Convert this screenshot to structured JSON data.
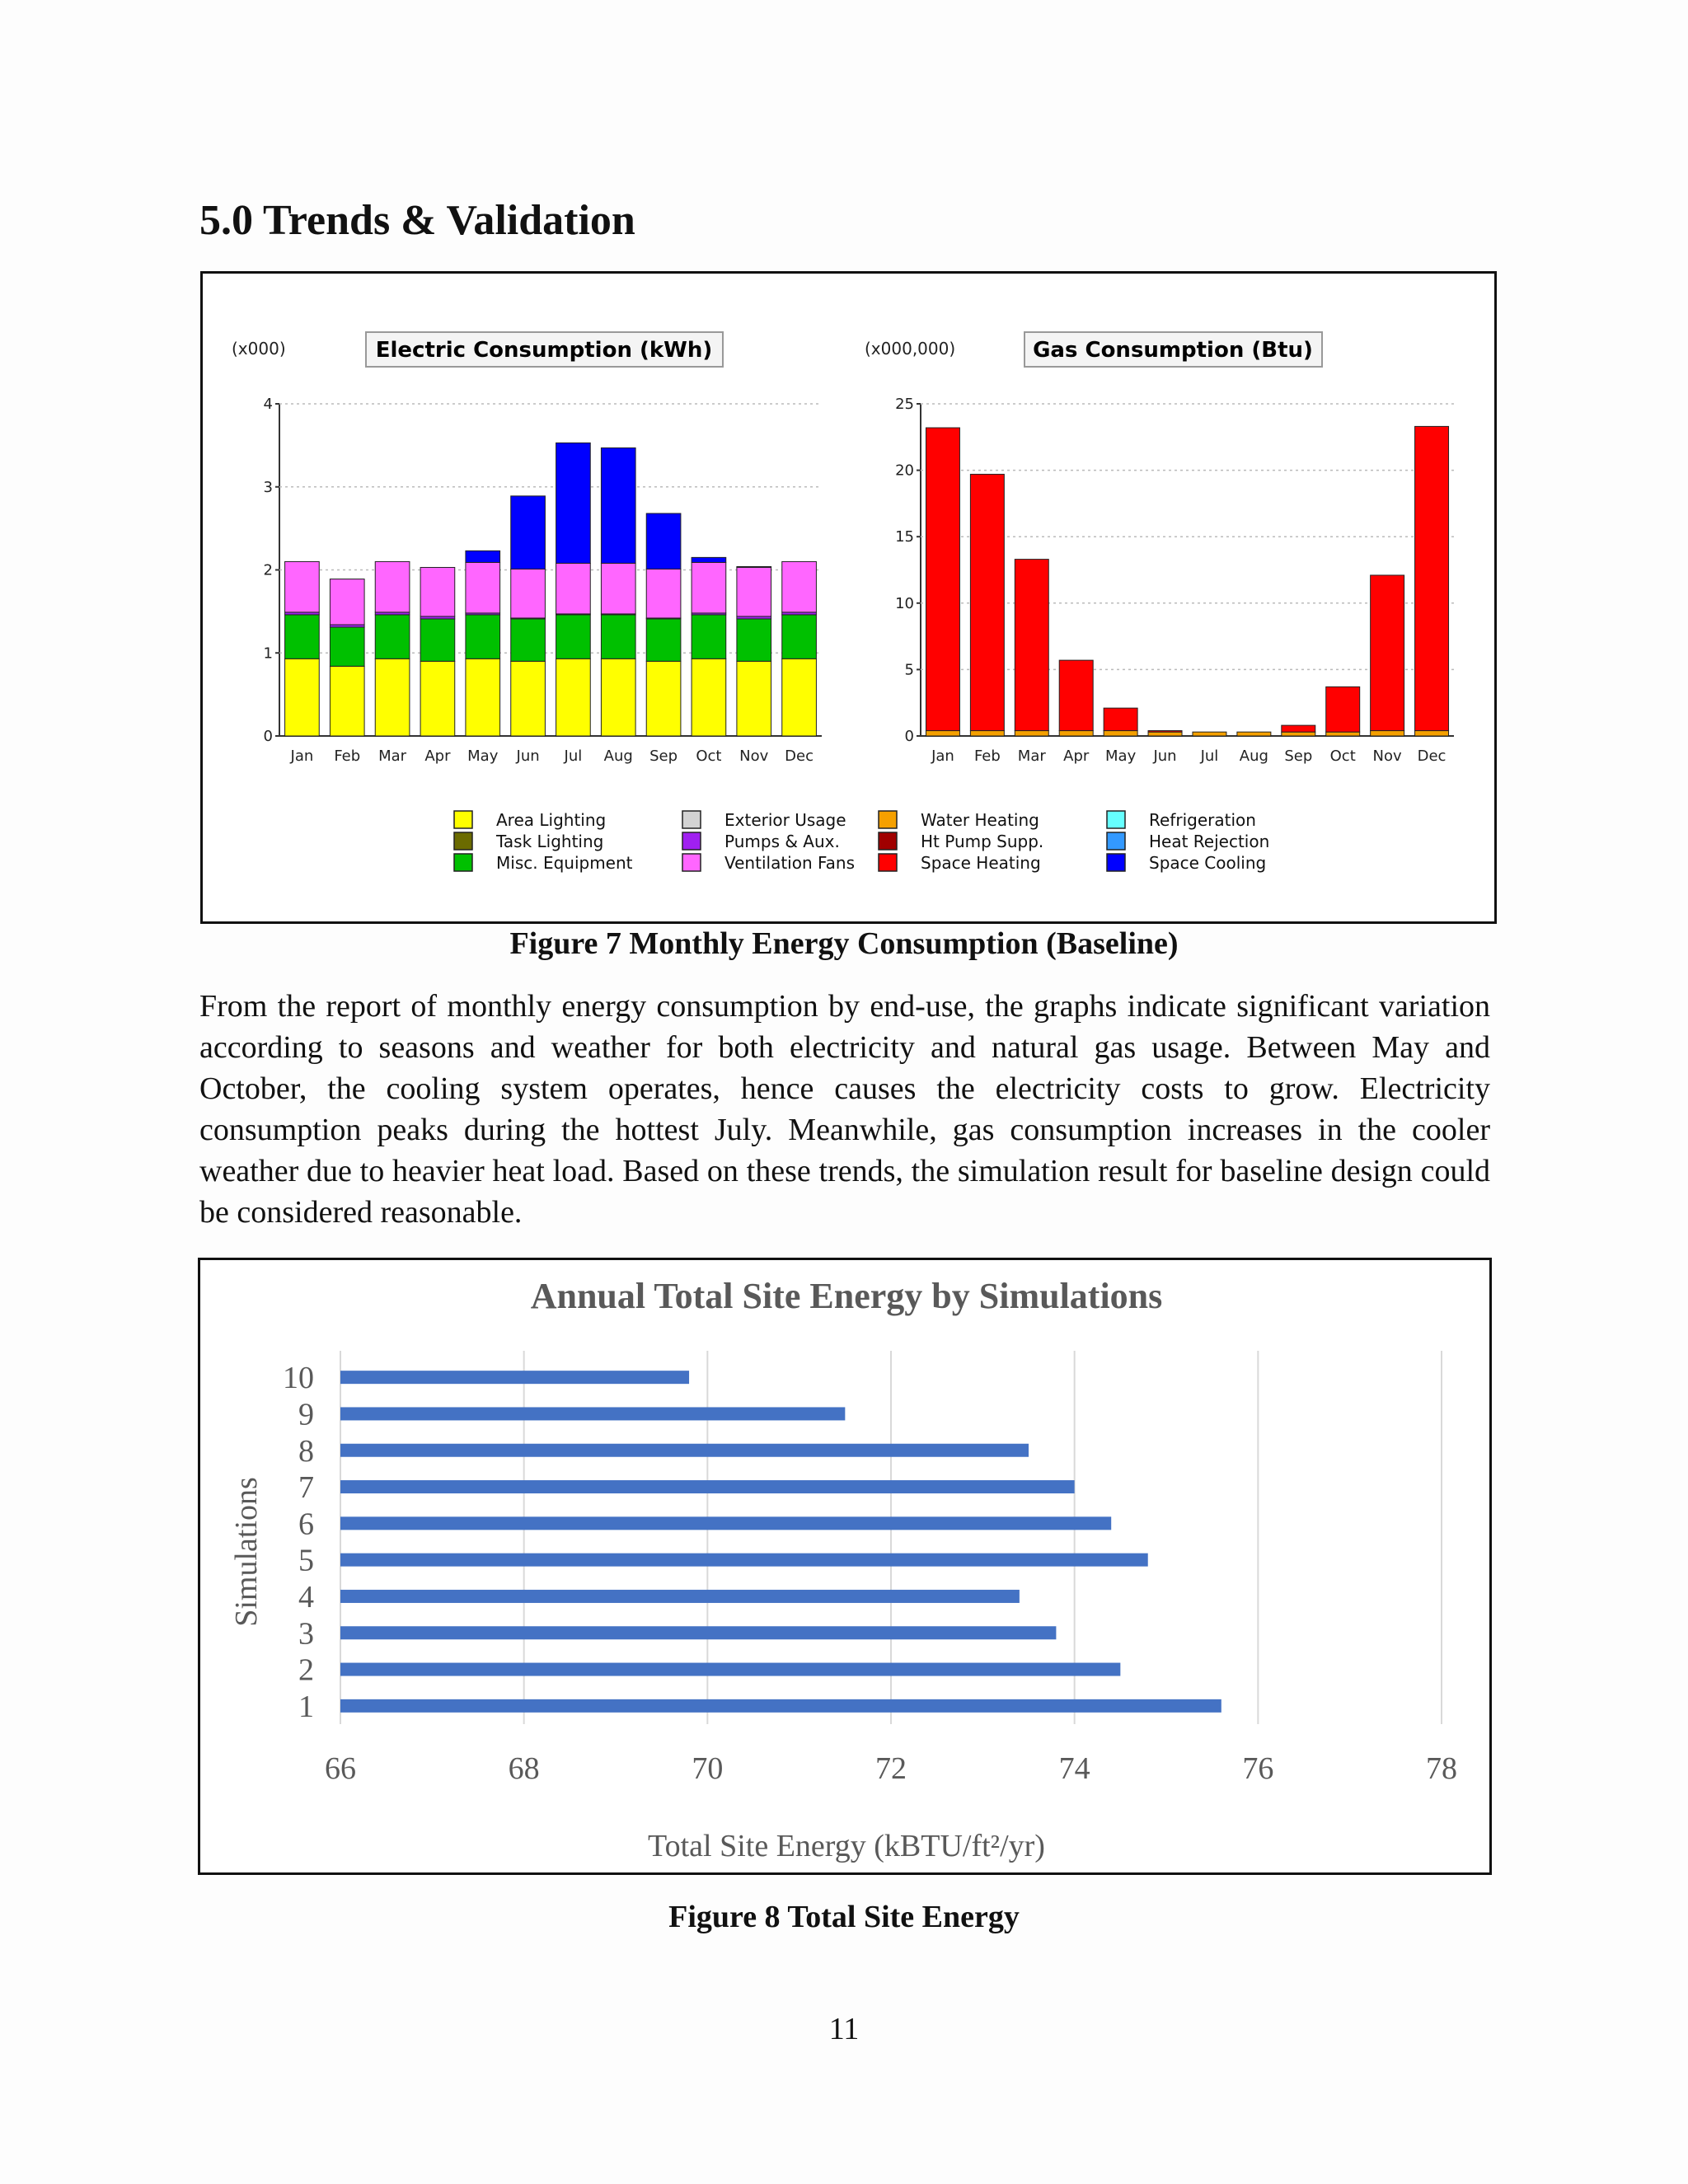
{
  "heading": "5.0 Trends & Validation",
  "figure7": {
    "caption": "Figure 7 Monthly Energy Consumption (Baseline)",
    "electric": {
      "title": "Electric Consumption (kWh)",
      "multiplier": "(x000)"
    },
    "gas": {
      "title": "Gas Consumption (Btu)",
      "multiplier": "(x000,000)"
    },
    "legend": [
      {
        "label": "Area Lighting",
        "color": "#ffff00"
      },
      {
        "label": "Task Lighting",
        "color": "#6b6b00"
      },
      {
        "label": "Misc. Equipment",
        "color": "#00c000"
      },
      {
        "label": "Exterior Usage",
        "color": "#d3d3d3"
      },
      {
        "label": "Pumps & Aux.",
        "color": "#a020f0"
      },
      {
        "label": "Ventilation Fans",
        "color": "#ff66ff"
      },
      {
        "label": "Water Heating",
        "color": "#f5a000"
      },
      {
        "label": "Ht Pump Supp.",
        "color": "#a00000"
      },
      {
        "label": "Space Heating",
        "color": "#ff0000"
      },
      {
        "label": "Refrigeration",
        "color": "#66ffff"
      },
      {
        "label": "Heat Rejection",
        "color": "#3399ff"
      },
      {
        "label": "Space Cooling",
        "color": "#0000ff"
      }
    ]
  },
  "paragraph": "From the report of monthly energy consumption by end-use, the graphs indicate significant variation according to seasons and weather for both electricity and natural gas usage. Between May and October, the cooling system operates, hence causes the electricity costs to grow. Electricity consumption peaks during the hottest July. Meanwhile, gas consumption increases in the cooler weather due to heavier heat load. Based on these trends, the simulation result for baseline design could be considered reasonable.",
  "figure8": {
    "caption": "Figure 8 Total Site Energy"
  },
  "page_number": "11",
  "chart_data": [
    {
      "type": "bar",
      "stacked": true,
      "title": "Electric Consumption (kWh)",
      "unit_multiplier": "(x000)",
      "categories": [
        "Jan",
        "Feb",
        "Mar",
        "Apr",
        "May",
        "Jun",
        "Jul",
        "Aug",
        "Sep",
        "Oct",
        "Nov",
        "Dec"
      ],
      "ylim": [
        0,
        4
      ],
      "yticks": [
        0,
        1,
        2,
        3,
        4
      ],
      "grid": true,
      "series": [
        {
          "name": "Area Lighting",
          "color": "#ffff00",
          "values": [
            0.93,
            0.84,
            0.93,
            0.9,
            0.93,
            0.9,
            0.93,
            0.93,
            0.9,
            0.93,
            0.9,
            0.93
          ]
        },
        {
          "name": "Misc. Equipment",
          "color": "#00c000",
          "values": [
            0.53,
            0.47,
            0.53,
            0.51,
            0.53,
            0.51,
            0.53,
            0.53,
            0.51,
            0.53,
            0.51,
            0.53
          ]
        },
        {
          "name": "Pumps & Aux.",
          "color": "#a020f0",
          "values": [
            0.03,
            0.03,
            0.03,
            0.03,
            0.02,
            0.01,
            0.01,
            0.01,
            0.01,
            0.02,
            0.03,
            0.03
          ]
        },
        {
          "name": "Ventilation Fans",
          "color": "#ff66ff",
          "values": [
            0.61,
            0.55,
            0.61,
            0.59,
            0.61,
            0.59,
            0.61,
            0.61,
            0.59,
            0.61,
            0.59,
            0.61
          ]
        },
        {
          "name": "Space Cooling",
          "color": "#0000ff",
          "values": [
            0,
            0,
            0,
            0,
            0.14,
            0.88,
            1.45,
            1.39,
            0.67,
            0.06,
            0.01,
            0
          ]
        }
      ]
    },
    {
      "type": "bar",
      "stacked": true,
      "title": "Gas Consumption (Btu)",
      "unit_multiplier": "(x000,000)",
      "categories": [
        "Jan",
        "Feb",
        "Mar",
        "Apr",
        "May",
        "Jun",
        "Jul",
        "Aug",
        "Sep",
        "Oct",
        "Nov",
        "Dec"
      ],
      "ylim": [
        0,
        25
      ],
      "yticks": [
        0,
        5,
        10,
        15,
        20,
        25
      ],
      "grid": true,
      "series": [
        {
          "name": "Water Heating",
          "color": "#f5a000",
          "values": [
            0.4,
            0.4,
            0.4,
            0.4,
            0.4,
            0.3,
            0.3,
            0.3,
            0.3,
            0.3,
            0.4,
            0.4
          ]
        },
        {
          "name": "Space Heating",
          "color": "#ff0000",
          "values": [
            22.8,
            19.3,
            12.9,
            5.3,
            1.7,
            0.1,
            0,
            0,
            0.5,
            3.4,
            11.7,
            22.9
          ]
        }
      ]
    },
    {
      "type": "bar",
      "orientation": "horizontal",
      "title": "Annual Total Site Energy by Simulations",
      "xlabel": "Total Site Energy (kBTU/ft²/yr)",
      "ylabel": "Simulations",
      "categories": [
        "1",
        "2",
        "3",
        "4",
        "5",
        "6",
        "7",
        "8",
        "9",
        "10"
      ],
      "values": [
        75.6,
        74.5,
        73.8,
        73.4,
        74.8,
        74.4,
        74.0,
        73.5,
        71.5,
        69.8
      ],
      "xlim": [
        66,
        78
      ],
      "xticks": [
        66,
        68,
        70,
        72,
        74,
        76,
        78
      ],
      "bar_color": "#4472c4",
      "grid": true
    }
  ]
}
